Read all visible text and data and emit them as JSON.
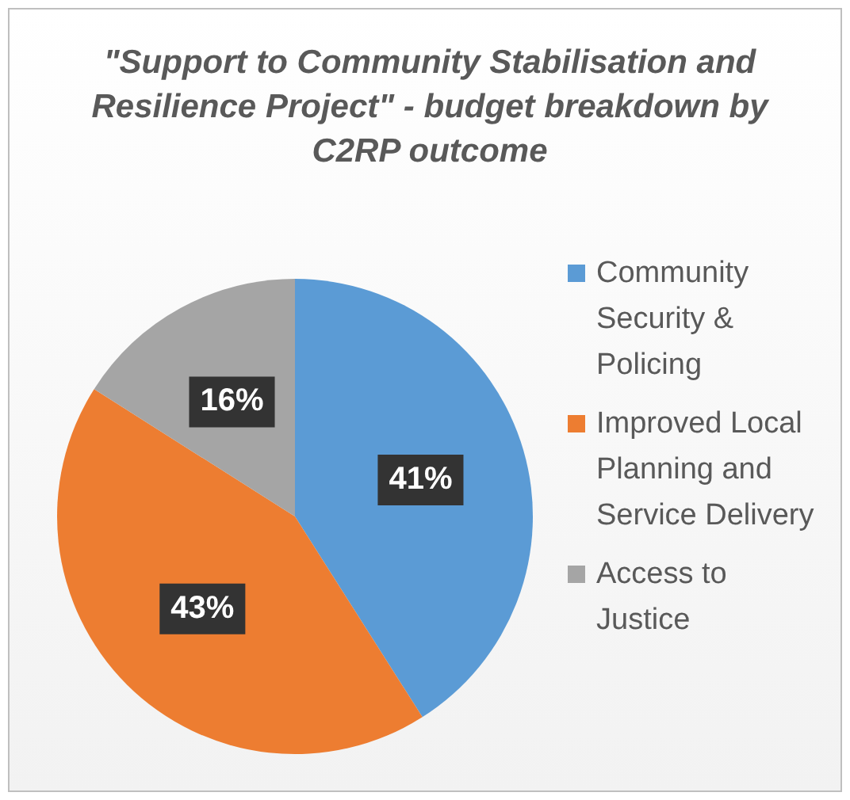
{
  "chart_data": {
    "type": "pie",
    "title": "\"Support to Community Stabilisation and Resilience Project\" - budget breakdown by C2RP outcome",
    "categories": [
      "Community Security & Policing",
      "Improved Local Planning and Service Delivery",
      "Access to Justice"
    ],
    "values": [
      41,
      43,
      16
    ],
    "colors": [
      "#5b9bd5",
      "#ed7d31",
      "#a5a5a5"
    ],
    "value_labels": [
      "41%",
      "43%",
      "16%"
    ],
    "legend": "right"
  }
}
